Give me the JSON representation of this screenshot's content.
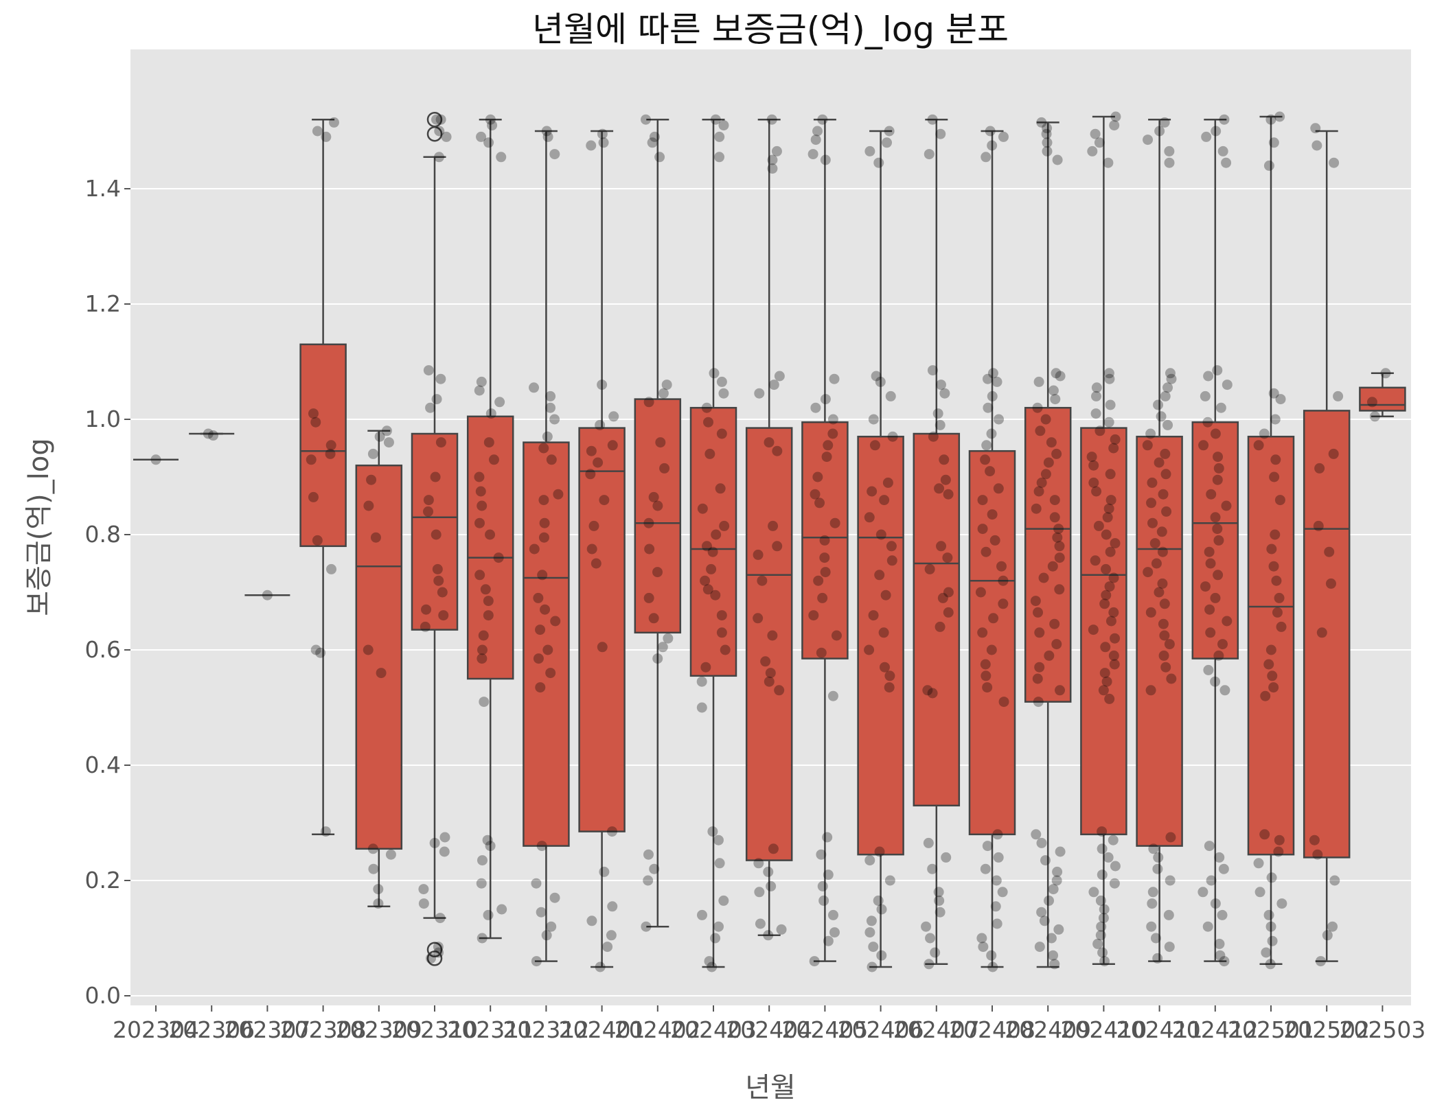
{
  "chart_data": {
    "type": "box",
    "title": "년월에 따른 보증금(억)_log 분포",
    "xlabel": "년월",
    "ylabel": "보증금(억)_log",
    "ylim": [
      -0.02,
      1.6
    ],
    "yticks": [
      0.0,
      0.2,
      0.4,
      0.6,
      0.8,
      1.0,
      1.2,
      1.4
    ],
    "ytick_labels": [
      "0.0",
      "0.2",
      "0.4",
      "0.6",
      "0.8",
      "1.0",
      "1.2",
      "1.4"
    ],
    "grid": true,
    "overlay": "strip points",
    "colors": {
      "box": "#cf5646",
      "box_edge": "#444444",
      "points": "#000000",
      "panel": "#e5e5e5",
      "grid": "#ffffff"
    },
    "categories": [
      "202304",
      "202306",
      "202307",
      "202308",
      "202309",
      "202310",
      "202311",
      "202312",
      "202401",
      "202402",
      "202403",
      "202404",
      "202405",
      "202406",
      "202407",
      "202408",
      "202409",
      "202410",
      "202411",
      "202412",
      "202501",
      "202502",
      "202503"
    ],
    "boxes": [
      {
        "q1": 0.93,
        "median": 0.93,
        "q3": 0.93,
        "whislo": 0.93,
        "whishi": 0.93,
        "fliers": []
      },
      {
        "q1": 0.975,
        "median": 0.975,
        "q3": 0.975,
        "whislo": 0.975,
        "whishi": 0.975,
        "fliers": []
      },
      {
        "q1": 0.695,
        "median": 0.695,
        "q3": 0.695,
        "whislo": 0.695,
        "whishi": 0.695,
        "fliers": []
      },
      {
        "q1": 0.78,
        "median": 0.945,
        "q3": 1.13,
        "whislo": 0.28,
        "whishi": 1.52,
        "fliers": []
      },
      {
        "q1": 0.255,
        "median": 0.745,
        "q3": 0.92,
        "whislo": 0.155,
        "whishi": 0.98,
        "fliers": []
      },
      {
        "q1": 0.635,
        "median": 0.83,
        "q3": 0.975,
        "whislo": 0.135,
        "whishi": 1.455,
        "fliers": [
          0.065,
          0.08,
          1.495,
          1.52
        ]
      },
      {
        "q1": 0.55,
        "median": 0.76,
        "q3": 1.005,
        "whislo": 0.1,
        "whishi": 1.52,
        "fliers": []
      },
      {
        "q1": 0.26,
        "median": 0.725,
        "q3": 0.96,
        "whislo": 0.06,
        "whishi": 1.5,
        "fliers": []
      },
      {
        "q1": 0.285,
        "median": 0.91,
        "q3": 0.985,
        "whislo": 0.05,
        "whishi": 1.5,
        "fliers": []
      },
      {
        "q1": 0.63,
        "median": 0.82,
        "q3": 1.035,
        "whislo": 0.12,
        "whishi": 1.52,
        "fliers": []
      },
      {
        "q1": 0.555,
        "median": 0.775,
        "q3": 1.02,
        "whislo": 0.05,
        "whishi": 1.52,
        "fliers": []
      },
      {
        "q1": 0.235,
        "median": 0.73,
        "q3": 0.985,
        "whislo": 0.105,
        "whishi": 1.52,
        "fliers": []
      },
      {
        "q1": 0.585,
        "median": 0.795,
        "q3": 0.995,
        "whislo": 0.06,
        "whishi": 1.52,
        "fliers": []
      },
      {
        "q1": 0.245,
        "median": 0.795,
        "q3": 0.97,
        "whislo": 0.05,
        "whishi": 1.5,
        "fliers": []
      },
      {
        "q1": 0.33,
        "median": 0.75,
        "q3": 0.975,
        "whislo": 0.055,
        "whishi": 1.52,
        "fliers": []
      },
      {
        "q1": 0.28,
        "median": 0.72,
        "q3": 0.945,
        "whislo": 0.05,
        "whishi": 1.5,
        "fliers": []
      },
      {
        "q1": 0.51,
        "median": 0.81,
        "q3": 1.02,
        "whislo": 0.05,
        "whishi": 1.515,
        "fliers": []
      },
      {
        "q1": 0.28,
        "median": 0.73,
        "q3": 0.985,
        "whislo": 0.055,
        "whishi": 1.525,
        "fliers": []
      },
      {
        "q1": 0.26,
        "median": 0.775,
        "q3": 0.97,
        "whislo": 0.06,
        "whishi": 1.52,
        "fliers": []
      },
      {
        "q1": 0.585,
        "median": 0.82,
        "q3": 0.995,
        "whislo": 0.06,
        "whishi": 1.52,
        "fliers": []
      },
      {
        "q1": 0.245,
        "median": 0.675,
        "q3": 0.97,
        "whislo": 0.055,
        "whishi": 1.525,
        "fliers": []
      },
      {
        "q1": 0.24,
        "median": 0.81,
        "q3": 1.015,
        "whislo": 0.06,
        "whishi": 1.5,
        "fliers": []
      },
      {
        "q1": 1.015,
        "median": 1.025,
        "q3": 1.055,
        "whislo": 1.005,
        "whishi": 1.08,
        "fliers": []
      }
    ],
    "strip_points": [
      [
        0.93
      ],
      [
        0.972,
        0.975
      ],
      [
        0.695
      ],
      [
        1.5,
        1.515,
        1.49,
        1.01,
        0.995,
        0.955,
        0.94,
        0.93,
        0.865,
        0.79,
        0.74,
        0.6,
        0.595,
        0.285
      ],
      [
        0.98,
        0.97,
        0.96,
        0.94,
        0.895,
        0.85,
        0.795,
        0.6,
        0.56,
        0.255,
        0.245,
        0.22,
        0.185,
        0.16
      ],
      [
        1.52,
        1.52,
        1.5,
        1.49,
        1.455,
        1.085,
        1.07,
        1.035,
        1.02,
        0.96,
        0.9,
        0.86,
        0.84,
        0.8,
        0.74,
        0.72,
        0.7,
        0.67,
        0.66,
        0.64,
        0.275,
        0.265,
        0.25,
        0.185,
        0.16,
        0.135,
        0.085,
        0.075,
        0.065
      ],
      [
        1.52,
        1.51,
        1.49,
        1.48,
        1.455,
        1.065,
        1.05,
        1.03,
        1.01,
        0.96,
        0.93,
        0.9,
        0.875,
        0.85,
        0.82,
        0.8,
        0.76,
        0.73,
        0.705,
        0.685,
        0.66,
        0.625,
        0.6,
        0.585,
        0.51,
        0.27,
        0.26,
        0.235,
        0.195,
        0.15,
        0.14,
        0.1
      ],
      [
        1.5,
        1.49,
        1.46,
        1.055,
        1.04,
        1.02,
        1.0,
        0.97,
        0.95,
        0.93,
        0.87,
        0.86,
        0.82,
        0.795,
        0.775,
        0.73,
        0.69,
        0.67,
        0.65,
        0.635,
        0.6,
        0.585,
        0.56,
        0.535,
        0.26,
        0.195,
        0.17,
        0.145,
        0.12,
        0.105,
        0.06
      ],
      [
        1.495,
        1.48,
        1.475,
        1.06,
        1.005,
        0.99,
        0.955,
        0.945,
        0.925,
        0.905,
        0.86,
        0.815,
        0.775,
        0.75,
        0.605,
        0.285,
        0.215,
        0.155,
        0.13,
        0.105,
        0.085,
        0.05
      ],
      [
        1.52,
        1.49,
        1.48,
        1.455,
        1.06,
        1.045,
        1.03,
        0.96,
        0.915,
        0.865,
        0.85,
        0.82,
        0.775,
        0.735,
        0.69,
        0.655,
        0.62,
        0.605,
        0.585,
        0.245,
        0.22,
        0.2,
        0.12
      ],
      [
        1.52,
        1.51,
        1.49,
        1.455,
        1.08,
        1.065,
        1.045,
        1.02,
        0.995,
        0.975,
        0.94,
        0.88,
        0.845,
        0.815,
        0.8,
        0.78,
        0.77,
        0.74,
        0.72,
        0.705,
        0.695,
        0.66,
        0.63,
        0.6,
        0.57,
        0.545,
        0.5,
        0.285,
        0.27,
        0.23,
        0.165,
        0.14,
        0.12,
        0.1,
        0.06,
        0.05
      ],
      [
        1.52,
        1.465,
        1.45,
        1.435,
        1.075,
        1.06,
        1.045,
        0.96,
        0.945,
        0.815,
        0.78,
        0.765,
        0.72,
        0.655,
        0.625,
        0.58,
        0.56,
        0.545,
        0.53,
        0.255,
        0.23,
        0.215,
        0.19,
        0.18,
        0.125,
        0.115,
        0.105
      ],
      [
        1.52,
        1.5,
        1.485,
        1.46,
        1.45,
        1.07,
        1.035,
        1.02,
        1.0,
        0.975,
        0.955,
        0.935,
        0.9,
        0.87,
        0.855,
        0.82,
        0.79,
        0.76,
        0.735,
        0.72,
        0.69,
        0.66,
        0.625,
        0.595,
        0.52,
        0.275,
        0.245,
        0.21,
        0.19,
        0.165,
        0.14,
        0.11,
        0.095,
        0.06
      ],
      [
        1.5,
        1.48,
        1.465,
        1.445,
        1.075,
        1.065,
        1.04,
        1.0,
        0.97,
        0.955,
        0.89,
        0.875,
        0.86,
        0.83,
        0.8,
        0.78,
        0.755,
        0.73,
        0.695,
        0.66,
        0.63,
        0.6,
        0.57,
        0.555,
        0.535,
        0.25,
        0.235,
        0.2,
        0.165,
        0.15,
        0.13,
        0.11,
        0.085,
        0.07,
        0.05
      ],
      [
        1.52,
        1.495,
        1.46,
        1.085,
        1.06,
        1.045,
        1.01,
        0.99,
        0.97,
        0.93,
        0.895,
        0.88,
        0.87,
        0.78,
        0.76,
        0.74,
        0.7,
        0.69,
        0.665,
        0.64,
        0.53,
        0.525,
        0.265,
        0.24,
        0.22,
        0.18,
        0.165,
        0.145,
        0.12,
        0.1,
        0.075,
        0.055
      ],
      [
        1.5,
        1.49,
        1.475,
        1.455,
        1.08,
        1.07,
        1.065,
        1.04,
        1.02,
        1.0,
        0.975,
        0.955,
        0.93,
        0.91,
        0.88,
        0.86,
        0.835,
        0.81,
        0.79,
        0.77,
        0.745,
        0.72,
        0.7,
        0.68,
        0.655,
        0.63,
        0.6,
        0.575,
        0.555,
        0.535,
        0.51,
        0.28,
        0.26,
        0.24,
        0.22,
        0.2,
        0.18,
        0.155,
        0.125,
        0.1,
        0.085,
        0.07,
        0.05
      ],
      [
        1.515,
        1.505,
        1.495,
        1.48,
        1.465,
        1.45,
        1.08,
        1.075,
        1.065,
        1.05,
        1.035,
        1.02,
        1.0,
        0.98,
        0.96,
        0.94,
        0.925,
        0.905,
        0.89,
        0.875,
        0.86,
        0.845,
        0.83,
        0.81,
        0.795,
        0.78,
        0.76,
        0.745,
        0.725,
        0.705,
        0.685,
        0.665,
        0.645,
        0.63,
        0.61,
        0.59,
        0.57,
        0.55,
        0.53,
        0.51,
        0.28,
        0.265,
        0.25,
        0.235,
        0.215,
        0.2,
        0.185,
        0.165,
        0.145,
        0.13,
        0.115,
        0.1,
        0.085,
        0.07,
        0.055
      ],
      [
        1.525,
        1.51,
        1.495,
        1.48,
        1.465,
        1.445,
        1.08,
        1.07,
        1.055,
        1.04,
        1.025,
        1.01,
        0.995,
        0.98,
        0.965,
        0.95,
        0.935,
        0.92,
        0.905,
        0.89,
        0.875,
        0.86,
        0.845,
        0.83,
        0.815,
        0.8,
        0.785,
        0.77,
        0.755,
        0.74,
        0.725,
        0.71,
        0.695,
        0.68,
        0.665,
        0.65,
        0.635,
        0.62,
        0.605,
        0.59,
        0.575,
        0.56,
        0.545,
        0.53,
        0.515,
        0.285,
        0.27,
        0.255,
        0.24,
        0.225,
        0.21,
        0.195,
        0.18,
        0.165,
        0.15,
        0.135,
        0.12,
        0.105,
        0.09,
        0.075,
        0.06
      ],
      [
        1.515,
        1.5,
        1.485,
        1.465,
        1.445,
        1.08,
        1.07,
        1.055,
        1.04,
        1.025,
        1.005,
        0.99,
        0.975,
        0.955,
        0.94,
        0.925,
        0.905,
        0.89,
        0.87,
        0.855,
        0.84,
        0.82,
        0.805,
        0.785,
        0.77,
        0.75,
        0.735,
        0.715,
        0.7,
        0.68,
        0.665,
        0.645,
        0.625,
        0.61,
        0.59,
        0.57,
        0.55,
        0.53,
        0.275,
        0.255,
        0.24,
        0.22,
        0.2,
        0.18,
        0.16,
        0.14,
        0.12,
        0.1,
        0.085,
        0.065
      ],
      [
        1.52,
        1.5,
        1.49,
        1.465,
        1.445,
        1.085,
        1.075,
        1.06,
        1.04,
        1.02,
        0.995,
        0.975,
        0.955,
        0.935,
        0.915,
        0.895,
        0.87,
        0.85,
        0.83,
        0.81,
        0.79,
        0.77,
        0.75,
        0.73,
        0.71,
        0.69,
        0.67,
        0.65,
        0.63,
        0.61,
        0.59,
        0.565,
        0.545,
        0.53,
        0.26,
        0.24,
        0.22,
        0.2,
        0.18,
        0.16,
        0.14,
        0.12,
        0.09,
        0.07,
        0.06
      ],
      [
        1.525,
        1.52,
        1.48,
        1.44,
        1.045,
        1.035,
        1.0,
        0.975,
        0.955,
        0.93,
        0.9,
        0.86,
        0.8,
        0.775,
        0.745,
        0.72,
        0.69,
        0.665,
        0.64,
        0.6,
        0.575,
        0.555,
        0.535,
        0.52,
        0.28,
        0.27,
        0.25,
        0.23,
        0.205,
        0.18,
        0.16,
        0.14,
        0.12,
        0.095,
        0.075,
        0.055
      ],
      [
        1.505,
        1.475,
        1.445,
        1.04,
        0.94,
        0.915,
        0.815,
        0.77,
        0.715,
        0.63,
        0.27,
        0.245,
        0.2,
        0.12,
        0.105,
        0.06
      ],
      [
        1.08,
        1.03,
        1.005
      ]
    ]
  }
}
